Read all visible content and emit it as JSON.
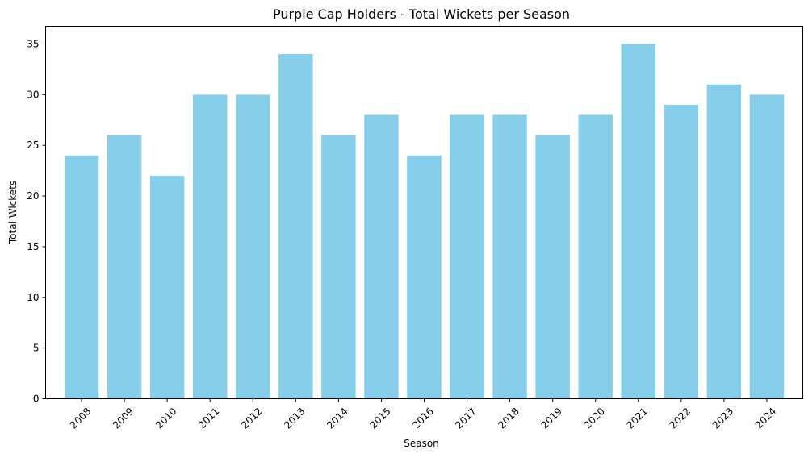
{
  "chart_data": {
    "type": "bar",
    "title": "Purple Cap Holders - Total Wickets per Season",
    "xlabel": "Season",
    "ylabel": "Total Wickets",
    "categories": [
      "2008",
      "2009",
      "2010",
      "2011",
      "2012",
      "2013",
      "2014",
      "2015",
      "2016",
      "2017",
      "2018",
      "2019",
      "2020",
      "2021",
      "2022",
      "2023",
      "2024"
    ],
    "values": [
      24,
      26,
      22,
      30,
      30,
      34,
      26,
      28,
      24,
      28,
      28,
      26,
      28,
      35,
      29,
      31,
      30
    ],
    "ylim": [
      0,
      36.75
    ],
    "yticks": [
      0,
      5,
      10,
      15,
      20,
      25,
      30,
      35
    ],
    "bar_color": "#87CEEB",
    "grid": false,
    "xtick_rotation_deg": 45
  }
}
